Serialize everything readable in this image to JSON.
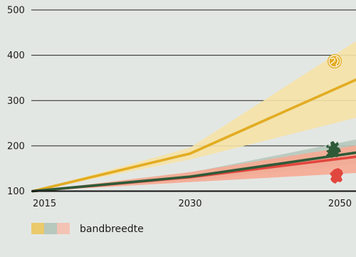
{
  "chart_data": {
    "type": "line",
    "x": [
      2015,
      2030,
      2050
    ],
    "y_ticks": [
      100,
      200,
      300,
      400,
      500
    ],
    "x_ticks": [
      2015,
      2030,
      2050
    ],
    "ylim": [
      100,
      500
    ],
    "xlim": [
      2015,
      2050
    ],
    "grid": "horizontal",
    "series": [
      {
        "key": "world",
        "icon": "globe-icon",
        "color": "#e2ac22",
        "band_color": "#f5e2a6",
        "values": [
          100,
          183,
          346
        ],
        "band_low": [
          100,
          170,
          262
        ],
        "band_high": [
          100,
          196,
          431
        ]
      },
      {
        "key": "eu",
        "icon": "europe-map-icon",
        "color": "#2f5a38",
        "band_color": "#b7c8bd",
        "values": [
          100,
          132,
          185
        ],
        "band_low": [
          100,
          123,
          160
        ],
        "band_high": [
          100,
          141,
          214
        ]
      },
      {
        "key": "nl",
        "icon": "netherlands-map-icon",
        "color": "#e1473e",
        "band_color": "#f6aa92",
        "values": [
          100,
          131,
          176
        ],
        "band_low": [
          100,
          120,
          140
        ],
        "band_high": [
          100,
          142,
          201
        ]
      }
    ],
    "legend": {
      "label": "bandbreedte",
      "swatch_colors": [
        "#ebca6c",
        "#b7c8bd",
        "#f3c3b4"
      ]
    }
  }
}
